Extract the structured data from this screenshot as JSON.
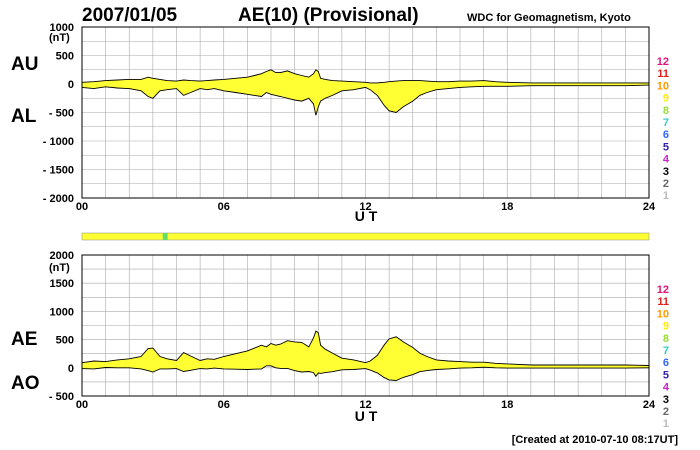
{
  "header": {
    "date": "2007/01/05",
    "title": "AE(10) (Provisional)",
    "source": "WDC for Geomagnetism, Kyoto"
  },
  "footer": {
    "created": "[Created at 2010-07-10 08:17UT]"
  },
  "colors": {
    "fill": "#ffff33",
    "grid": "#aaaaaa",
    "bar_bg": "#ffff33",
    "bar_marker": "#66dd66"
  },
  "station_levels": [
    {
      "label": "12",
      "color": "#e0157a"
    },
    {
      "label": "11",
      "color": "#dd2020"
    },
    {
      "label": "10",
      "color": "#ff9900"
    },
    {
      "label": "9",
      "color": "#ffee00"
    },
    {
      "label": "8",
      "color": "#99dd33"
    },
    {
      "label": "7",
      "color": "#33cccc"
    },
    {
      "label": "6",
      "color": "#3366ff"
    },
    {
      "label": "5",
      "color": "#3322aa"
    },
    {
      "label": "4",
      "color": "#cc22cc"
    },
    {
      "label": "3",
      "color": "#000000"
    },
    {
      "label": "2",
      "color": "#666666"
    },
    {
      "label": "1",
      "color": "#bbbbbb"
    }
  ],
  "station_bar": {
    "marker_hour": 3.5
  },
  "chart_data": [
    {
      "type": "area",
      "id": "au_al",
      "labels": {
        "upper": "AU",
        "lower": "AL"
      },
      "xlabel": "U T",
      "x_ticks": [
        "00",
        "06",
        "12",
        "18",
        "24"
      ],
      "xlim": [
        0,
        24
      ],
      "ylim": [
        -2000,
        1000
      ],
      "y_ticks": [
        "1000",
        "500",
        "0",
        "- 500",
        "- 1000",
        "- 1500",
        "- 2000"
      ],
      "y_unit": "(nT)",
      "series": [
        {
          "name": "AU",
          "x": [
            0,
            0.5,
            1,
            1.5,
            2,
            2.5,
            2.8,
            3,
            3.3,
            3.6,
            4,
            4.3,
            4.6,
            5,
            5.3,
            5.6,
            6,
            6.5,
            7,
            7.3,
            7.6,
            7.8,
            8,
            8.2,
            8.4,
            8.7,
            9,
            9.3,
            9.6,
            9.8,
            9.9,
            10,
            10.1,
            10.3,
            10.6,
            11,
            11.5,
            12,
            12.2,
            12.5,
            12.8,
            13,
            13.3,
            13.6,
            14,
            14.3,
            14.6,
            15,
            15.5,
            16,
            16.5,
            17,
            17.5,
            18,
            19,
            20,
            21,
            22,
            23,
            24
          ],
          "values": [
            30,
            40,
            60,
            70,
            80,
            80,
            120,
            100,
            80,
            60,
            50,
            70,
            60,
            50,
            60,
            70,
            80,
            100,
            120,
            150,
            180,
            220,
            250,
            200,
            200,
            230,
            180,
            150,
            120,
            180,
            250,
            220,
            100,
            80,
            60,
            50,
            40,
            30,
            20,
            20,
            30,
            40,
            50,
            60,
            60,
            60,
            50,
            40,
            40,
            50,
            50,
            60,
            40,
            30,
            20,
            20,
            20,
            20,
            20,
            20
          ]
        },
        {
          "name": "AL",
          "x": [
            0,
            0.5,
            1,
            1.5,
            2,
            2.5,
            2.8,
            3,
            3.3,
            3.6,
            4,
            4.3,
            4.6,
            5,
            5.3,
            5.6,
            6,
            6.5,
            7,
            7.3,
            7.6,
            7.8,
            8,
            8.2,
            8.4,
            8.7,
            9,
            9.3,
            9.6,
            9.8,
            9.9,
            10,
            10.1,
            10.3,
            10.6,
            11,
            11.5,
            12,
            12.2,
            12.5,
            12.8,
            13,
            13.3,
            13.6,
            14,
            14.3,
            14.6,
            15,
            15.5,
            16,
            16.5,
            17,
            17.5,
            18,
            19,
            20,
            21,
            22,
            23,
            24
          ],
          "values": [
            -60,
            -80,
            -50,
            -70,
            -80,
            -120,
            -220,
            -250,
            -120,
            -100,
            -80,
            -200,
            -150,
            -80,
            -100,
            -80,
            -120,
            -150,
            -180,
            -200,
            -220,
            -150,
            -180,
            -200,
            -220,
            -250,
            -280,
            -300,
            -250,
            -350,
            -550,
            -400,
            -300,
            -250,
            -200,
            -120,
            -100,
            -60,
            -100,
            -200,
            -380,
            -470,
            -500,
            -400,
            -300,
            -200,
            -150,
            -100,
            -80,
            -60,
            -50,
            -40,
            -40,
            -40,
            -30,
            -30,
            -30,
            -30,
            -30,
            -20
          ]
        }
      ]
    },
    {
      "type": "area",
      "id": "ae_ao",
      "labels": {
        "upper": "AE",
        "lower": "AO"
      },
      "xlabel": "U T",
      "x_ticks": [
        "00",
        "06",
        "12",
        "18",
        "24"
      ],
      "xlim": [
        0,
        24
      ],
      "ylim": [
        -500,
        2000
      ],
      "y_ticks": [
        "2000",
        "1500",
        "1000",
        "500",
        "0",
        "- 500"
      ],
      "y_unit": "(nT)",
      "series": [
        {
          "name": "AE",
          "x": [
            0,
            0.5,
            1,
            1.5,
            2,
            2.5,
            2.8,
            3,
            3.3,
            3.6,
            4,
            4.3,
            4.6,
            5,
            5.3,
            5.6,
            6,
            6.5,
            7,
            7.3,
            7.6,
            7.8,
            8,
            8.2,
            8.4,
            8.7,
            9,
            9.3,
            9.6,
            9.8,
            9.9,
            10,
            10.1,
            10.3,
            10.6,
            11,
            11.5,
            12,
            12.2,
            12.5,
            12.8,
            13,
            13.3,
            13.6,
            14,
            14.3,
            14.6,
            15,
            15.5,
            16,
            16.5,
            17,
            17.5,
            18,
            19,
            20,
            21,
            22,
            23,
            24
          ],
          "values": [
            90,
            120,
            110,
            140,
            160,
            200,
            340,
            350,
            200,
            160,
            130,
            270,
            210,
            130,
            160,
            150,
            200,
            250,
            300,
            350,
            400,
            370,
            430,
            400,
            420,
            480,
            460,
            450,
            370,
            530,
            650,
            620,
            400,
            330,
            260,
            170,
            140,
            90,
            120,
            220,
            410,
            510,
            550,
            460,
            360,
            260,
            200,
            140,
            120,
            110,
            100,
            100,
            80,
            70,
            50,
            50,
            50,
            50,
            50,
            40
          ]
        },
        {
          "name": "AO",
          "x": [
            0,
            0.5,
            1,
            1.5,
            2,
            2.5,
            2.8,
            3,
            3.3,
            3.6,
            4,
            4.3,
            4.6,
            5,
            5.3,
            5.6,
            6,
            6.5,
            7,
            7.3,
            7.6,
            7.8,
            8,
            8.2,
            8.4,
            8.7,
            9,
            9.3,
            9.6,
            9.8,
            9.9,
            10,
            10.1,
            10.3,
            10.6,
            11,
            11.5,
            12,
            12.2,
            12.5,
            12.8,
            13,
            13.3,
            13.6,
            14,
            14.3,
            14.6,
            15,
            15.5,
            16,
            16.5,
            17,
            17.5,
            18,
            19,
            20,
            21,
            22,
            23,
            24
          ],
          "values": [
            -15,
            -20,
            5,
            0,
            0,
            -20,
            -50,
            -75,
            -20,
            -20,
            -15,
            -65,
            -45,
            -15,
            -20,
            -5,
            -20,
            -25,
            -30,
            -25,
            -20,
            35,
            35,
            0,
            -10,
            -10,
            -50,
            -75,
            -65,
            -85,
            -150,
            -90,
            -100,
            -85,
            -70,
            -35,
            -30,
            -15,
            -40,
            -90,
            -175,
            -215,
            -225,
            -170,
            -120,
            -70,
            -50,
            -30,
            -20,
            -5,
            0,
            10,
            0,
            -5,
            -5,
            -5,
            -5,
            -5,
            -5,
            0
          ]
        }
      ]
    }
  ]
}
